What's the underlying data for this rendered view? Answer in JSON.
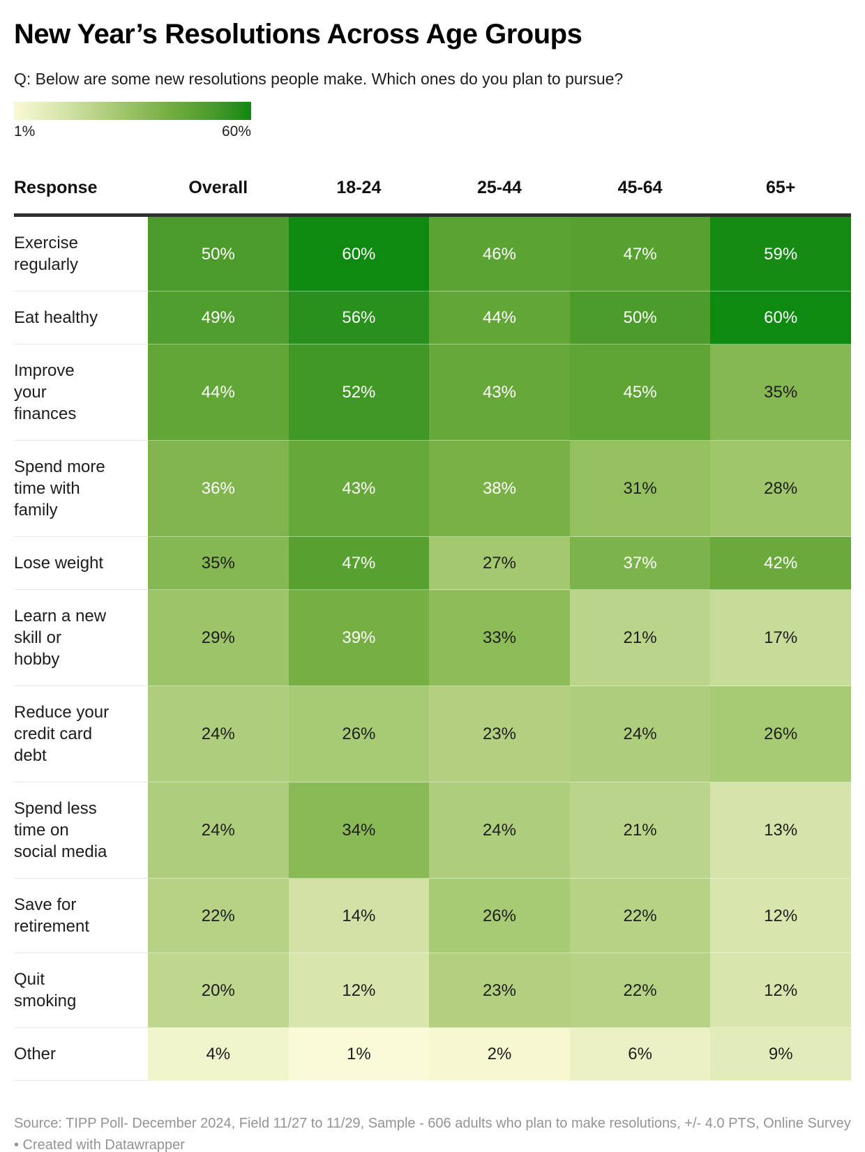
{
  "title": "New Year’s Resolutions Across Age Groups",
  "subtitle": "Q: Below are some new resolutions people make. Which ones do you plan to pursue?",
  "legend": {
    "min_label": "1%",
    "max_label": "60%"
  },
  "footer": "Source: TIPP Poll- December 2024, Field 11/27 to 11/29, Sample - 606 adults who plan to make resolutions, +/- 4.0 PTS, Online Survey • Created with Datawrapper",
  "chart_data": {
    "type": "heatmap",
    "columns": [
      "Response",
      "Overall",
      "18-24",
      "25-44",
      "45-64",
      "65+"
    ],
    "value_suffix": "%",
    "rows": [
      {
        "label": "Exercise\nregularly",
        "values": [
          50,
          60,
          46,
          47,
          59
        ]
      },
      {
        "label": "Eat healthy",
        "values": [
          49,
          56,
          44,
          50,
          60
        ]
      },
      {
        "label": "Improve\nyour\nfinances",
        "values": [
          44,
          52,
          43,
          45,
          35
        ]
      },
      {
        "label": "Spend more\ntime with\nfamily",
        "values": [
          36,
          43,
          38,
          31,
          28
        ]
      },
      {
        "label": "Lose weight",
        "values": [
          35,
          47,
          27,
          37,
          42
        ]
      },
      {
        "label": "Learn a new\nskill or\nhobby",
        "values": [
          29,
          39,
          33,
          21,
          17
        ]
      },
      {
        "label": "Reduce your\ncredit card\ndebt",
        "values": [
          24,
          26,
          23,
          24,
          26
        ]
      },
      {
        "label": "Spend less\ntime on\nsocial media",
        "values": [
          24,
          34,
          24,
          21,
          13
        ]
      },
      {
        "label": "Save for\nretirement",
        "values": [
          22,
          14,
          26,
          22,
          12
        ]
      },
      {
        "label": "Quit\nsmoking",
        "values": [
          20,
          12,
          23,
          22,
          12
        ]
      },
      {
        "label": "Other",
        "values": [
          4,
          1,
          2,
          6,
          9
        ]
      }
    ],
    "color_scale": {
      "domain": [
        1,
        60
      ],
      "stops": [
        [
          1,
          "#f9fad6"
        ],
        [
          10,
          "#dfeab6"
        ],
        [
          20,
          "#bed68d"
        ],
        [
          30,
          "#98c264"
        ],
        [
          40,
          "#72ad40"
        ],
        [
          50,
          "#4c9c2b"
        ],
        [
          55,
          "#309122"
        ],
        [
          60,
          "#0e8a10"
        ]
      ],
      "white_text_min": 36,
      "dark_text_color": "#1d1d1d",
      "light_text_color": "#ffffff"
    }
  }
}
